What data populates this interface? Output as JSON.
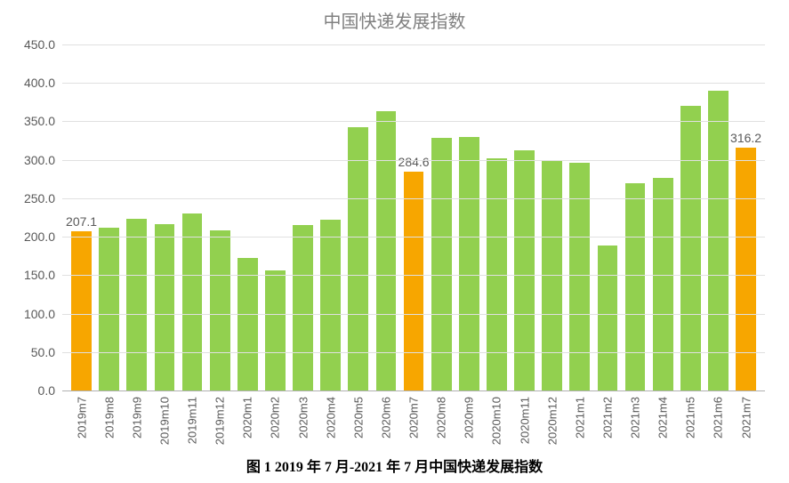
{
  "chart": {
    "type": "bar",
    "title": "中国快递发展指数",
    "title_color": "#808080",
    "title_fontsize": 20,
    "caption": "图 1 2019 年 7 月-2021 年 7 月中国快递发展指数",
    "caption_fontsize": 16,
    "caption_fontweight": "bold",
    "background_color": "#ffffff",
    "grid_color": "#e0e0e0",
    "axis_color": "#b0b0b0",
    "tick_label_color": "#595959",
    "tick_fontsize": 14,
    "ylim": [
      0,
      450
    ],
    "ytick_step": 50,
    "yticks": [
      "0.0",
      "50.0",
      "100.0",
      "150.0",
      "200.0",
      "250.0",
      "300.0",
      "350.0",
      "400.0",
      "450.0"
    ],
    "bar_width_ratio": 0.73,
    "colors": {
      "normal": "#92d04f",
      "highlight": "#f7a600"
    },
    "categories": [
      "2019m7",
      "2019m8",
      "2019m9",
      "2019m10",
      "2019m11",
      "2019m12",
      "2020m1",
      "2020m2",
      "2020m3",
      "2020m4",
      "2020m5",
      "2020m6",
      "2020m7",
      "2020m8",
      "2020m9",
      "2020m10",
      "2020m11",
      "2020m12",
      "2021m1",
      "2021m2",
      "2021m3",
      "2021m4",
      "2021m5",
      "2021m6",
      "2021m7"
    ],
    "values": [
      207.1,
      212,
      223,
      216,
      230,
      208,
      172,
      156,
      215,
      222,
      343,
      363,
      284.6,
      328,
      330,
      302,
      312,
      299,
      296,
      189,
      269,
      277,
      370,
      390,
      316.2
    ],
    "highlights": [
      0,
      12,
      24
    ],
    "value_labels": {
      "0": "207.1",
      "12": "284.6",
      "24": "316.2"
    }
  }
}
